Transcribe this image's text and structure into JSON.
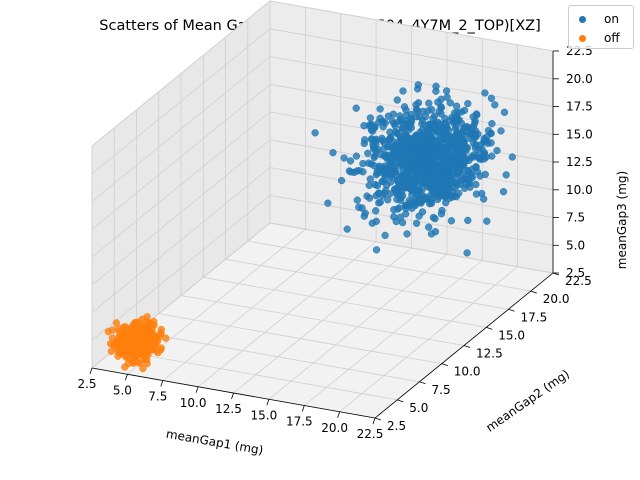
{
  "chart_data": {
    "type": "scatter",
    "projection": "3d",
    "title": "Scatters of Mean Gaps in 3D (motor_0504_4Y7M_2_TOP)[XZ]",
    "xlabel": "meanGap1 (mg)",
    "ylabel": "meanGap2 (mg)",
    "zlabel": "meanGap3 (mg)",
    "xlim": [
      2.5,
      22.5
    ],
    "ylim": [
      2.5,
      22.5
    ],
    "zlim": [
      2.5,
      22.5
    ],
    "xticks": [
      "2.5",
      "5.0",
      "7.5",
      "10.0",
      "12.5",
      "15.0",
      "17.5",
      "20.0",
      "22.5"
    ],
    "yticks": [
      "2.5",
      "5.0",
      "7.5",
      "10.0",
      "12.5",
      "15.0",
      "17.5",
      "20.0",
      "22.5"
    ],
    "zticks": [
      "2.5",
      "5.0",
      "7.5",
      "10.0",
      "12.5",
      "15.0",
      "17.5",
      "20.0",
      "22.5"
    ],
    "grid": true,
    "legend_position": "top-right",
    "series": [
      {
        "name": "on",
        "color": "#1f77b4",
        "center": [
          17.0,
          17.0,
          15.0
        ],
        "spread": [
          1.8,
          1.8,
          2.0
        ],
        "points": [
          [
            17.0,
            17.0,
            15.0
          ],
          [
            18.5,
            16.0,
            16.5
          ],
          [
            15.5,
            18.0,
            14.0
          ],
          [
            16.2,
            15.5,
            17.5
          ],
          [
            19.0,
            18.5,
            13.5
          ],
          [
            14.8,
            16.8,
            15.8
          ],
          [
            17.8,
            19.2,
            16.2
          ],
          [
            16.5,
            14.5,
            13.0
          ],
          [
            18.2,
            17.2,
            18.5
          ],
          [
            15.2,
            17.5,
            12.5
          ],
          [
            19.5,
            16.5,
            15.2
          ],
          [
            16.8,
            18.8,
            14.6
          ],
          [
            14.5,
            15.2,
            16.0
          ],
          [
            17.5,
            15.8,
            19.5
          ],
          [
            18.8,
            19.8,
            14.0
          ],
          [
            16.0,
            17.8,
            11.5
          ],
          [
            20.2,
            17.5,
            16.8
          ],
          [
            15.8,
            16.2,
            13.8
          ],
          [
            17.2,
            18.2,
            17.0
          ],
          [
            18.0,
            14.2,
            15.5
          ],
          [
            13.8,
            17.0,
            14.8
          ],
          [
            19.2,
            15.0,
            17.8
          ],
          [
            16.5,
            19.5,
            15.5
          ],
          [
            17.8,
            16.8,
            12.2
          ],
          [
            15.0,
            18.5,
            16.5
          ],
          [
            18.5,
            18.0,
            14.2
          ],
          [
            16.2,
            16.0,
            20.0
          ],
          [
            20.5,
            18.8,
            15.0
          ],
          [
            14.2,
            16.5,
            12.8
          ],
          [
            17.0,
            20.2,
            17.2
          ],
          [
            19.8,
            16.2,
            13.2
          ],
          [
            15.5,
            15.0,
            15.0
          ],
          [
            18.2,
            17.5,
            16.0
          ],
          [
            16.8,
            15.2,
            18.2
          ],
          [
            17.5,
            18.5,
            11.0
          ],
          [
            15.2,
            19.0,
            14.5
          ],
          [
            19.0,
            17.0,
            19.0
          ],
          [
            16.0,
            16.5,
            14.0
          ],
          [
            18.8,
            15.5,
            14.8
          ],
          [
            14.8,
            18.2,
            17.0
          ],
          [
            17.2,
            17.2,
            13.5
          ],
          [
            20.0,
            19.5,
            16.5
          ],
          [
            16.5,
            17.0,
            16.2
          ],
          [
            18.0,
            16.0,
            12.0
          ],
          [
            15.8,
            17.8,
            18.8
          ],
          [
            17.8,
            15.0,
            16.0
          ],
          [
            13.5,
            16.0,
            15.5
          ],
          [
            19.5,
            18.2,
            14.0
          ],
          [
            16.2,
            18.8,
            15.8
          ],
          [
            17.0,
            16.2,
            10.5
          ]
        ]
      },
      {
        "name": "off",
        "color": "#ff7f0e",
        "center": [
          4.5,
          4.5,
          4.0
        ],
        "spread": [
          0.6,
          0.6,
          0.7
        ],
        "points": [
          [
            4.5,
            4.5,
            4.0
          ],
          [
            5.0,
            4.2,
            4.6
          ],
          [
            4.0,
            4.8,
            3.6
          ],
          [
            4.8,
            5.0,
            4.3
          ],
          [
            4.2,
            4.0,
            4.8
          ],
          [
            5.2,
            4.6,
            3.7
          ],
          [
            3.8,
            4.4,
            4.2
          ],
          [
            4.6,
            3.8,
            3.9
          ],
          [
            5.4,
            4.8,
            4.4
          ],
          [
            4.4,
            5.2,
            4.7
          ],
          [
            3.6,
            4.6,
            3.8
          ],
          [
            4.9,
            4.3,
            3.4
          ],
          [
            4.3,
            4.7,
            5.0
          ],
          [
            5.1,
            5.1,
            4.1
          ],
          [
            3.9,
            4.1,
            4.5
          ],
          [
            4.7,
            4.9,
            3.5
          ],
          [
            5.3,
            4.4,
            4.9
          ],
          [
            4.1,
            3.9,
            4.1
          ],
          [
            4.5,
            5.3,
            4.0
          ],
          [
            4.8,
            4.0,
            4.2
          ],
          [
            5.6,
            4.7,
            3.9
          ],
          [
            4.0,
            4.3,
            3.3
          ],
          [
            4.6,
            4.6,
            4.6
          ],
          [
            3.7,
            5.0,
            4.3
          ],
          [
            5.0,
            4.8,
            3.8
          ],
          [
            4.3,
            4.2,
            4.4
          ],
          [
            4.9,
            3.7,
            4.0
          ],
          [
            4.2,
            5.1,
            4.8
          ],
          [
            5.5,
            4.2,
            4.2
          ],
          [
            4.4,
            4.4,
            3.6
          ]
        ]
      }
    ]
  }
}
